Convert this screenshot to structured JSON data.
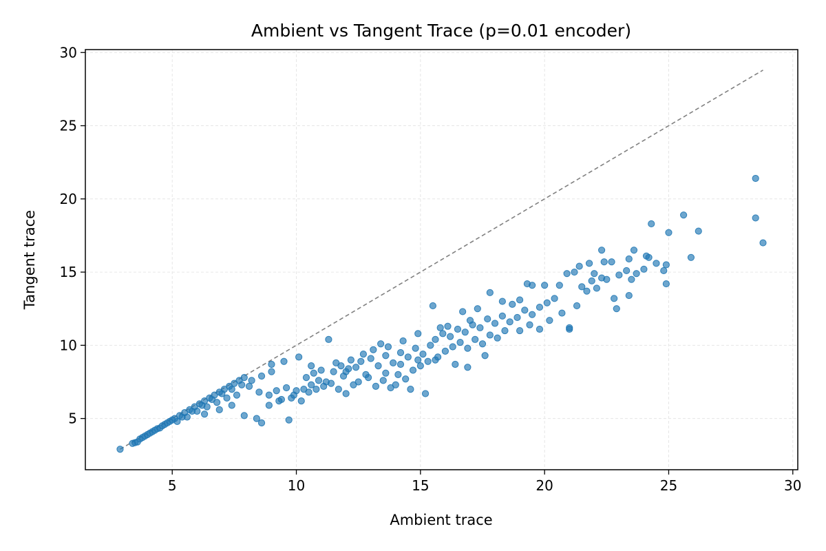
{
  "chart_data": {
    "type": "scatter",
    "title": "Ambient vs Tangent Trace (p=0.01 encoder)",
    "xlabel": "Ambient trace",
    "ylabel": "Tangent trace",
    "xlim": [
      1.5,
      30.2
    ],
    "ylim": [
      1.5,
      30.2
    ],
    "xticks": [
      5,
      10,
      15,
      20,
      25,
      30
    ],
    "yticks": [
      5,
      10,
      15,
      20,
      25,
      30
    ],
    "grid": true,
    "point_color": "#1f77b4",
    "reference_line": {
      "style": "dashed",
      "color": "#808080",
      "from": [
        2.9,
        2.9
      ],
      "to": [
        28.8,
        28.8
      ]
    },
    "series": [
      {
        "values": [
          [
            2.9,
            2.9
          ],
          [
            3.4,
            3.3
          ],
          [
            3.6,
            3.4
          ],
          [
            3.8,
            3.7
          ],
          [
            4.0,
            3.9
          ],
          [
            4.2,
            4.1
          ],
          [
            4.4,
            4.3
          ],
          [
            4.6,
            4.5
          ],
          [
            4.8,
            4.7
          ],
          [
            5.0,
            4.9
          ],
          [
            3.5,
            3.35
          ],
          [
            3.7,
            3.6
          ],
          [
            3.9,
            3.8
          ],
          [
            4.1,
            4.0
          ],
          [
            4.3,
            4.2
          ],
          [
            4.5,
            4.35
          ],
          [
            4.7,
            4.6
          ],
          [
            4.9,
            4.8
          ],
          [
            5.1,
            5.0
          ],
          [
            5.3,
            5.2
          ],
          [
            5.5,
            5.4
          ],
          [
            5.7,
            5.6
          ],
          [
            5.9,
            5.8
          ],
          [
            6.1,
            6.0
          ],
          [
            6.3,
            6.2
          ],
          [
            6.5,
            6.4
          ],
          [
            6.7,
            6.6
          ],
          [
            6.9,
            6.8
          ],
          [
            7.1,
            7.0
          ],
          [
            7.3,
            7.2
          ],
          [
            7.5,
            7.4
          ],
          [
            7.7,
            7.6
          ],
          [
            7.9,
            7.8
          ],
          [
            5.2,
            4.8
          ],
          [
            5.6,
            5.1
          ],
          [
            6.0,
            5.5
          ],
          [
            6.4,
            5.8
          ],
          [
            6.8,
            6.1
          ],
          [
            7.2,
            6.4
          ],
          [
            7.6,
            6.6
          ],
          [
            5.4,
            5.1
          ],
          [
            5.8,
            5.5
          ],
          [
            6.2,
            5.9
          ],
          [
            6.6,
            6.3
          ],
          [
            7.0,
            6.7
          ],
          [
            7.4,
            7.0
          ],
          [
            7.8,
            7.3
          ],
          [
            8.2,
            7.6
          ],
          [
            8.6,
            7.9
          ],
          [
            9.0,
            8.2
          ],
          [
            6.3,
            5.3
          ],
          [
            6.9,
            5.6
          ],
          [
            7.4,
            5.9
          ],
          [
            7.9,
            5.2
          ],
          [
            8.4,
            5.0
          ],
          [
            8.6,
            4.7
          ],
          [
            9.7,
            4.9
          ],
          [
            8.9,
            5.9
          ],
          [
            9.3,
            6.2
          ],
          [
            9.8,
            6.4
          ],
          [
            8.1,
            7.2
          ],
          [
            8.5,
            6.8
          ],
          [
            8.9,
            6.6
          ],
          [
            9.2,
            6.9
          ],
          [
            9.6,
            7.1
          ],
          [
            10.0,
            6.9
          ],
          [
            10.3,
            7.0
          ],
          [
            10.6,
            7.3
          ],
          [
            10.9,
            7.6
          ],
          [
            11.2,
            7.5
          ],
          [
            9.4,
            6.3
          ],
          [
            9.9,
            6.6
          ],
          [
            10.2,
            6.2
          ],
          [
            10.5,
            6.8
          ],
          [
            10.8,
            7.0
          ],
          [
            11.1,
            7.2
          ],
          [
            11.4,
            7.4
          ],
          [
            11.7,
            7.0
          ],
          [
            12.0,
            6.7
          ],
          [
            12.3,
            7.3
          ],
          [
            9.0,
            8.7
          ],
          [
            9.5,
            8.9
          ],
          [
            10.1,
            9.2
          ],
          [
            10.6,
            8.6
          ],
          [
            11.3,
            10.4
          ],
          [
            11.0,
            8.3
          ],
          [
            11.6,
            8.8
          ],
          [
            12.0,
            8.2
          ],
          [
            12.4,
            8.5
          ],
          [
            12.8,
            8.0
          ],
          [
            12.6,
            8.9
          ],
          [
            13.0,
            9.1
          ],
          [
            13.3,
            8.6
          ],
          [
            13.6,
            9.3
          ],
          [
            13.9,
            8.8
          ],
          [
            14.2,
            9.5
          ],
          [
            14.5,
            9.2
          ],
          [
            14.8,
            9.8
          ],
          [
            15.1,
            9.4
          ],
          [
            15.4,
            10.0
          ],
          [
            12.5,
            7.5
          ],
          [
            12.9,
            7.8
          ],
          [
            13.2,
            7.2
          ],
          [
            13.5,
            7.6
          ],
          [
            13.8,
            7.1
          ],
          [
            14.1,
            8.0
          ],
          [
            14.4,
            7.7
          ],
          [
            14.7,
            8.3
          ],
          [
            15.0,
            8.6
          ],
          [
            15.3,
            8.9
          ],
          [
            15.6,
            10.4
          ],
          [
            15.9,
            10.8
          ],
          [
            16.2,
            10.6
          ],
          [
            16.5,
            11.1
          ],
          [
            16.8,
            10.9
          ],
          [
            17.1,
            11.4
          ],
          [
            17.4,
            11.2
          ],
          [
            17.7,
            11.8
          ],
          [
            18.0,
            11.5
          ],
          [
            18.3,
            12.0
          ],
          [
            15.7,
            9.2
          ],
          [
            16.0,
            9.6
          ],
          [
            16.3,
            9.9
          ],
          [
            16.6,
            10.2
          ],
          [
            16.9,
            9.8
          ],
          [
            17.2,
            10.4
          ],
          [
            17.5,
            10.1
          ],
          [
            17.8,
            10.7
          ],
          [
            18.1,
            10.5
          ],
          [
            18.4,
            11.0
          ],
          [
            15.5,
            12.7
          ],
          [
            16.7,
            12.3
          ],
          [
            17.3,
            12.5
          ],
          [
            17.8,
            13.6
          ],
          [
            18.3,
            13.0
          ],
          [
            18.7,
            12.8
          ],
          [
            19.0,
            13.1
          ],
          [
            19.3,
            14.2
          ],
          [
            19.5,
            14.1
          ],
          [
            20.0,
            14.1
          ],
          [
            18.6,
            11.6
          ],
          [
            18.9,
            11.9
          ],
          [
            19.2,
            12.4
          ],
          [
            19.5,
            12.1
          ],
          [
            19.8,
            12.6
          ],
          [
            20.1,
            12.9
          ],
          [
            20.4,
            13.2
          ],
          [
            20.7,
            12.2
          ],
          [
            21.0,
            11.2
          ],
          [
            21.3,
            12.7
          ],
          [
            19.0,
            11.0
          ],
          [
            19.4,
            11.4
          ],
          [
            19.8,
            11.1
          ],
          [
            20.2,
            11.7
          ],
          [
            16.4,
            8.7
          ],
          [
            16.9,
            8.5
          ],
          [
            17.6,
            9.3
          ],
          [
            14.0,
            7.3
          ],
          [
            14.6,
            7.0
          ],
          [
            15.2,
            6.7
          ],
          [
            20.6,
            14.1
          ],
          [
            20.9,
            14.9
          ],
          [
            21.2,
            15.0
          ],
          [
            21.5,
            14.0
          ],
          [
            21.7,
            13.7
          ],
          [
            21.9,
            14.4
          ],
          [
            22.1,
            13.9
          ],
          [
            22.3,
            14.6
          ],
          [
            22.5,
            14.5
          ],
          [
            22.8,
            13.2
          ],
          [
            21.4,
            15.4
          ],
          [
            21.8,
            15.6
          ],
          [
            22.0,
            14.9
          ],
          [
            22.4,
            15.7
          ],
          [
            22.7,
            15.7
          ],
          [
            23.0,
            14.8
          ],
          [
            23.3,
            15.1
          ],
          [
            23.5,
            14.5
          ],
          [
            23.7,
            14.9
          ],
          [
            24.0,
            15.2
          ],
          [
            22.3,
            16.5
          ],
          [
            23.4,
            15.9
          ],
          [
            23.6,
            16.5
          ],
          [
            24.1,
            16.1
          ],
          [
            24.2,
            16.0
          ],
          [
            24.5,
            15.6
          ],
          [
            24.8,
            15.1
          ],
          [
            24.9,
            15.5
          ],
          [
            24.9,
            14.2
          ],
          [
            23.4,
            13.4
          ],
          [
            24.3,
            18.3
          ],
          [
            25.0,
            17.7
          ],
          [
            25.6,
            18.9
          ],
          [
            26.2,
            17.8
          ],
          [
            25.9,
            16.0
          ],
          [
            28.5,
            21.4
          ],
          [
            28.5,
            18.7
          ],
          [
            28.8,
            17.0
          ],
          [
            22.9,
            12.5
          ],
          [
            21.0,
            11.1
          ],
          [
            11.5,
            8.2
          ],
          [
            11.8,
            8.6
          ],
          [
            12.2,
            9.0
          ],
          [
            12.7,
            9.4
          ],
          [
            13.1,
            9.7
          ],
          [
            13.4,
            10.1
          ],
          [
            13.7,
            9.9
          ],
          [
            14.3,
            10.3
          ],
          [
            14.9,
            10.8
          ],
          [
            15.8,
            11.2
          ],
          [
            10.4,
            7.8
          ],
          [
            10.7,
            8.1
          ],
          [
            11.9,
            7.9
          ],
          [
            12.1,
            8.4
          ],
          [
            13.6,
            8.1
          ],
          [
            14.2,
            8.7
          ],
          [
            14.9,
            9.0
          ],
          [
            15.6,
            9.0
          ],
          [
            16.1,
            11.3
          ],
          [
            17.0,
            11.7
          ]
        ]
      }
    ]
  }
}
